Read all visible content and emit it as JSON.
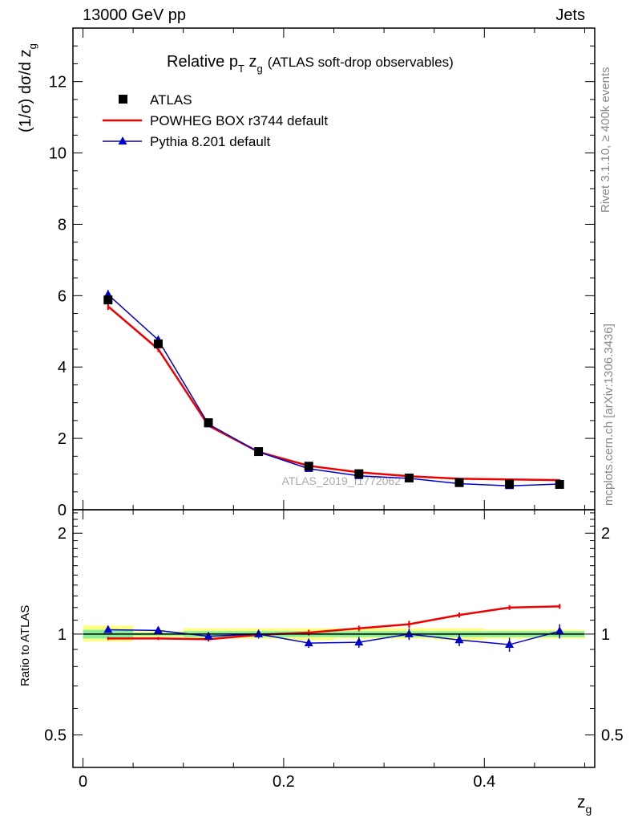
{
  "header": {
    "left": "13000 GeV pp",
    "right": "Jets"
  },
  "title": {
    "main": "Relative p",
    "sub": "T",
    "rest": " z",
    "sub2": "g",
    "paren": "(ATLAS soft-drop observables)"
  },
  "side_labels": {
    "rivet": "Rivet 3.1.10, ≥ 400k events",
    "mcplots": "mcplots.cern.ch [arXiv:1306.3436]"
  },
  "watermark": "ATLAS_2019_I1772062",
  "colors": {
    "atlas": "#000000",
    "powheg": "#ee0000",
    "pythia": "#0000cc",
    "band_yellow": "#ffff80",
    "band_green": "#88ee99"
  },
  "chart_data": [
    {
      "type": "line",
      "ylabel": {
        "main": "(1/σ) dσ/d z",
        "sub": "g"
      },
      "xlim": [
        -0.01,
        0.51
      ],
      "ylim": [
        0,
        13.5
      ],
      "yticks": [
        0,
        2,
        4,
        6,
        8,
        10,
        12
      ],
      "ytick_labels": [
        "0",
        "2",
        "4",
        "6",
        "8",
        "10",
        "12"
      ],
      "x": [
        0.025,
        0.075,
        0.125,
        0.175,
        0.225,
        0.275,
        0.325,
        0.375,
        0.425,
        0.475
      ],
      "legend": [
        "ATLAS",
        "POWHEG BOX r3744 default",
        "Pythia 8.201 default"
      ],
      "series": [
        {
          "name": "ATLAS",
          "marker": "square",
          "values": [
            5.88,
            4.65,
            2.44,
            1.63,
            1.22,
            1.01,
            0.89,
            0.76,
            0.72,
            0.71
          ]
        },
        {
          "name": "POWHEG BOX r3744 default",
          "marker": "none",
          "values": [
            5.7,
            4.5,
            2.36,
            1.62,
            1.23,
            1.05,
            0.94,
            0.87,
            0.85,
            0.83
          ],
          "errors": [
            0.1,
            0.08,
            0.04,
            0.03,
            0.02,
            0.02,
            0.02,
            0.02,
            0.02,
            0.02
          ]
        },
        {
          "name": "Pythia 8.201 default",
          "marker": "triangle",
          "values": [
            6.03,
            4.76,
            2.4,
            1.62,
            1.15,
            0.95,
            0.88,
            0.73,
            0.67,
            0.72
          ],
          "errors": [
            0.13,
            0.1,
            0.05,
            0.04,
            0.03,
            0.03,
            0.03,
            0.03,
            0.03,
            0.03
          ]
        }
      ]
    },
    {
      "type": "line",
      "ylabel": "Ratio to ATLAS",
      "xlabel": {
        "main": "z",
        "sub": "g"
      },
      "xlim": [
        -0.01,
        0.51
      ],
      "ylim": [
        0.4,
        2.35
      ],
      "yscale": "log",
      "yticks": [
        0.5,
        1,
        2
      ],
      "ytick_labels": [
        "0.5",
        "1",
        "2"
      ],
      "xticks": [
        0,
        0.2,
        0.4
      ],
      "xtick_labels": [
        "0",
        "0.2",
        "0.4"
      ],
      "x": [
        0.025,
        0.075,
        0.125,
        0.175,
        0.225,
        0.275,
        0.325,
        0.375,
        0.425,
        0.475
      ],
      "bands": {
        "yellow": [
          [
            0.95,
            1.06
          ],
          [
            0.98,
            1.02
          ],
          [
            0.97,
            1.04
          ],
          [
            0.97,
            1.04
          ],
          [
            0.96,
            1.04
          ],
          [
            0.97,
            1.04
          ],
          [
            0.97,
            1.04
          ],
          [
            0.96,
            1.04
          ],
          [
            0.97,
            1.03
          ],
          [
            0.97,
            1.03
          ]
        ],
        "green": [
          [
            0.97,
            1.03
          ],
          [
            0.99,
            1.01
          ],
          [
            0.98,
            1.02
          ],
          [
            0.98,
            1.02
          ],
          [
            0.98,
            1.02
          ],
          [
            0.98,
            1.02
          ],
          [
            0.98,
            1.02
          ],
          [
            0.98,
            1.02
          ],
          [
            0.98,
            1.02
          ],
          [
            0.98,
            1.02
          ]
        ]
      },
      "series": [
        {
          "name": "POWHEG BOX r3744 default",
          "values": [
            0.97,
            0.97,
            0.965,
            0.995,
            1.01,
            1.04,
            1.07,
            1.14,
            1.2,
            1.21
          ],
          "errors": [
            0.01,
            0.01,
            0.015,
            0.015,
            0.02,
            0.02,
            0.025,
            0.02,
            0.02,
            0.02
          ]
        },
        {
          "name": "Pythia 8.201 default",
          "values": [
            1.03,
            1.025,
            0.985,
            1.0,
            0.94,
            0.945,
            1.0,
            0.96,
            0.93,
            1.02
          ],
          "errors": [
            0.02,
            0.015,
            0.025,
            0.03,
            0.03,
            0.035,
            0.04,
            0.04,
            0.045,
            0.05
          ]
        }
      ]
    }
  ]
}
